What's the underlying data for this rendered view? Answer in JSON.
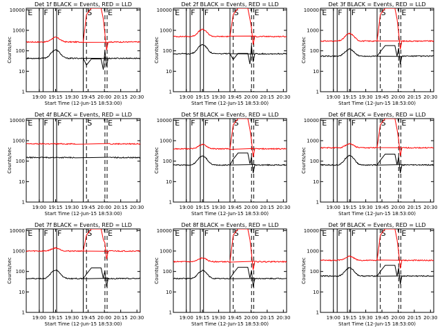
{
  "chart_data": {
    "type": "line",
    "grid": "3x3",
    "shared_x": {
      "label": "Start Time (12-Jun-15 18:53:00)",
      "ticks": [
        "19:00",
        "19:15",
        "19:30",
        "19:45",
        "20:00",
        "20:15",
        "20:30"
      ],
      "range_minutes": [
        -5,
        100
      ]
    },
    "shared_y": {
      "label": "Counts/sec",
      "scale": "log",
      "ticks": [
        "1",
        "10",
        "100",
        "1000",
        "10000"
      ],
      "range": [
        1,
        12000
      ]
    },
    "colors": {
      "events": "#000000",
      "lld": "#ff0000"
    },
    "panels": [
      {
        "title": "Det 1f BLACK = Events, RED = LLD",
        "segments": [
          {
            "label": "E",
            "x": -4.2
          },
          {
            "label": "F",
            "x": 10.5
          },
          {
            "label": "F",
            "x": 23.0
          },
          {
            "label": "S",
            "x": 50.5
          },
          {
            "label": "E",
            "x": 69.5
          }
        ],
        "solid_lines": [
          7.0,
          10.5,
          20.0,
          23.0,
          47.5
        ],
        "dashed_lines": [
          50.5,
          67.5,
          69.5
        ],
        "events": {
          "base": 43,
          "bump": 110,
          "flare": 40,
          "gap": false
        },
        "lld": {
          "base": 270,
          "bump": 450,
          "flare": 12000,
          "gap": false
        }
      },
      {
        "title": "Det 2f BLACK = Events, RED = LLD",
        "segments": [
          {
            "label": "E",
            "x": -4.2
          },
          {
            "label": "F",
            "x": 10.5
          },
          {
            "label": "F",
            "x": 23.0
          },
          {
            "label": "S",
            "x": 50.5
          },
          {
            "label": "E",
            "x": 69.5
          }
        ],
        "solid_lines": [
          7.0,
          10.5,
          20.0,
          23.0,
          47.5
        ],
        "dashed_lines": [
          50.5,
          67.5,
          69.5
        ],
        "events": {
          "base": 72,
          "bump": 200,
          "flare": 75,
          "gap": false
        },
        "lld": {
          "base": 500,
          "bump": 1100,
          "flare": 12000,
          "gap": false
        }
      },
      {
        "title": "Det 3f BLACK = Events, RED = LLD",
        "segments": [
          {
            "label": "E",
            "x": -4.2
          },
          {
            "label": "F",
            "x": 10.5
          },
          {
            "label": "F",
            "x": 23.0
          },
          {
            "label": "S",
            "x": 50.5
          },
          {
            "label": "E",
            "x": 69.5
          }
        ],
        "solid_lines": [
          7.0,
          10.5,
          20.0,
          23.0,
          47.5
        ],
        "dashed_lines": [
          50.5,
          67.5,
          69.5
        ],
        "events": {
          "base": 55,
          "bump": 120,
          "flare": 180,
          "gap": false
        },
        "lld": {
          "base": 300,
          "bump": 700,
          "flare": 12000,
          "gap": false
        }
      },
      {
        "title": "Det 4f BLACK = Events, RED = LLD",
        "segments": [
          {
            "label": "E",
            "x": -4.2
          },
          {
            "label": "F",
            "x": 10.5
          },
          {
            "label": "F",
            "x": 23.0
          },
          {
            "label": "S",
            "x": 50.5
          },
          {
            "label": "E",
            "x": 69.5
          }
        ],
        "solid_lines": [
          7.0,
          10.5,
          20.0,
          23.0,
          47.5
        ],
        "dashed_lines": [
          50.5,
          67.5,
          69.5
        ],
        "events": {
          "base": 150,
          "bump": 150,
          "flare": 150,
          "gap": true
        },
        "lld": {
          "base": 700,
          "bump": 700,
          "flare": 12000,
          "gap": true
        }
      },
      {
        "title": "Det 5f BLACK = Events, RED = LLD",
        "segments": [
          {
            "label": "E",
            "x": -4.2
          },
          {
            "label": "F",
            "x": 10.5
          },
          {
            "label": "F",
            "x": 23.0
          },
          {
            "label": "S",
            "x": 50.5
          },
          {
            "label": "E",
            "x": 69.5
          }
        ],
        "solid_lines": [
          7.0,
          10.5,
          20.0,
          23.0,
          47.5
        ],
        "dashed_lines": [
          50.5,
          67.5,
          69.5
        ],
        "events": {
          "base": 65,
          "bump": 180,
          "flare": 250,
          "gap": false
        },
        "lld": {
          "base": 400,
          "bump": 650,
          "flare": 12000,
          "gap": false
        }
      },
      {
        "title": "Det 6f BLACK = Events, RED = LLD",
        "segments": [
          {
            "label": "E",
            "x": -4.2
          },
          {
            "label": "F",
            "x": 10.5
          },
          {
            "label": "F",
            "x": 23.0
          },
          {
            "label": "S",
            "x": 50.5
          },
          {
            "label": "E",
            "x": 69.5
          }
        ],
        "solid_lines": [
          7.0,
          10.5,
          20.0,
          23.0,
          47.5
        ],
        "dashed_lines": [
          50.5,
          67.5,
          69.5
        ],
        "events": {
          "base": 65,
          "bump": 190,
          "flare": 220,
          "gap": false
        },
        "lld": {
          "base": 450,
          "bump": 700,
          "flare": 12000,
          "gap": false
        }
      },
      {
        "title": "Det 7f BLACK = Events, RED = LLD",
        "segments": [
          {
            "label": "E",
            "x": -4.2
          },
          {
            "label": "F",
            "x": 10.5
          },
          {
            "label": "F",
            "x": 23.0
          },
          {
            "label": "S",
            "x": 50.5
          },
          {
            "label": "E",
            "x": 69.5
          }
        ],
        "solid_lines": [
          7.0,
          10.5,
          20.0,
          23.0,
          47.5
        ],
        "dashed_lines": [
          50.5,
          67.5,
          69.5
        ],
        "events": {
          "base": 45,
          "bump": 120,
          "flare": 150,
          "gap": false
        },
        "lld": {
          "base": 1000,
          "bump": 1400,
          "flare": 12000,
          "gap": false
        }
      },
      {
        "title": "Det 8f BLACK = Events, RED = LLD",
        "segments": [
          {
            "label": "E",
            "x": -4.2
          },
          {
            "label": "F",
            "x": 10.5
          },
          {
            "label": "F",
            "x": 23.0
          },
          {
            "label": "S",
            "x": 50.5
          },
          {
            "label": "E",
            "x": 69.5
          }
        ],
        "solid_lines": [
          7.0,
          10.5,
          20.0,
          23.0,
          47.5
        ],
        "dashed_lines": [
          50.5,
          67.5,
          69.5
        ],
        "events": {
          "base": 45,
          "bump": 110,
          "flare": 160,
          "gap": false
        },
        "lld": {
          "base": 300,
          "bump": 450,
          "flare": 12000,
          "gap": false
        }
      },
      {
        "title": "Det 9f BLACK = Events, RED = LLD",
        "segments": [
          {
            "label": "E",
            "x": -4.2
          },
          {
            "label": "F",
            "x": 10.5
          },
          {
            "label": "F",
            "x": 23.0
          },
          {
            "label": "S",
            "x": 50.5
          },
          {
            "label": "E",
            "x": 69.5
          }
        ],
        "solid_lines": [
          7.0,
          10.5,
          20.0,
          23.0,
          47.5
        ],
        "dashed_lines": [
          50.5,
          67.5,
          69.5
        ],
        "events": {
          "base": 60,
          "bump": 150,
          "flare": 200,
          "gap": false
        },
        "lld": {
          "base": 350,
          "bump": 550,
          "flare": 12000,
          "gap": false
        }
      }
    ]
  }
}
